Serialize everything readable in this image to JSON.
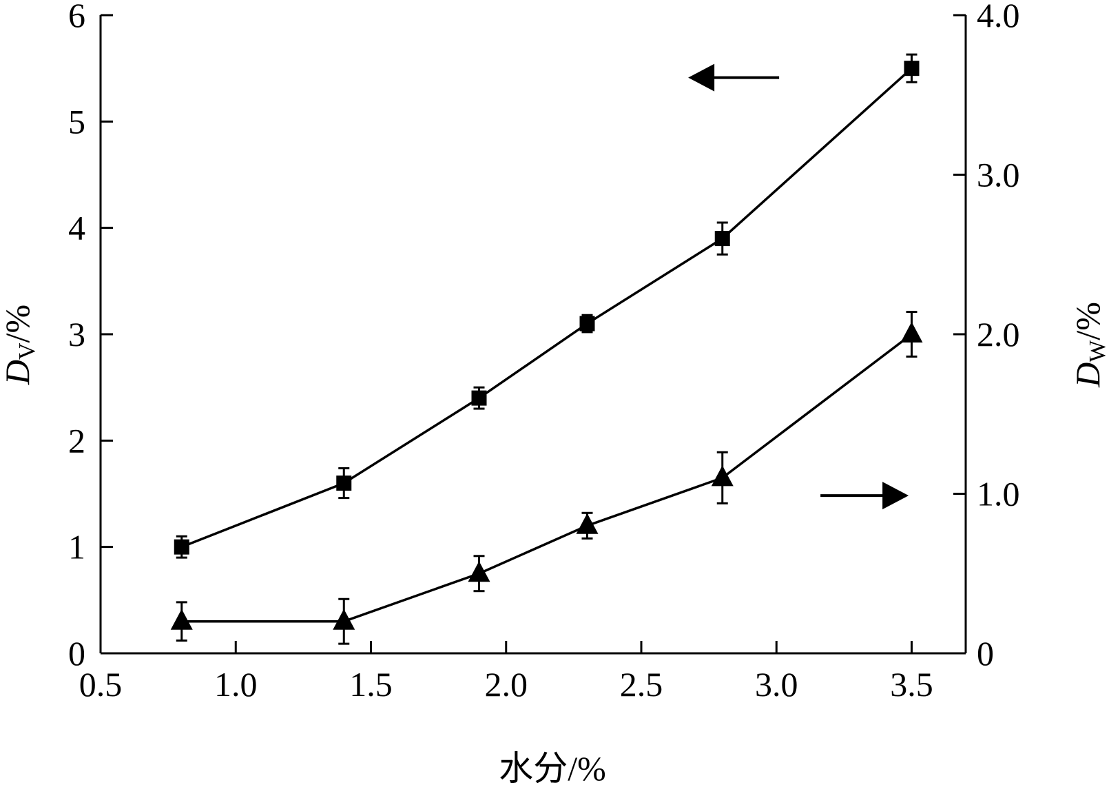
{
  "chart_data": {
    "type": "line",
    "xlabel": "水分/%",
    "ylabel_left": {
      "symbol": "D",
      "subscript": "V",
      "unit": "/%"
    },
    "ylabel_right": {
      "symbol": "D",
      "subscript": "W",
      "unit": "/%"
    },
    "xlim": [
      0.5,
      3.7
    ],
    "ylim_left": [
      0,
      6
    ],
    "ylim_right": [
      0,
      4
    ],
    "x_ticks": [
      0.5,
      1.0,
      1.5,
      2.0,
      2.5,
      3.0,
      3.5
    ],
    "x_tick_labels": [
      "0.5",
      "1.0",
      "1.5",
      "2.0",
      "2.5",
      "3.0",
      "3.5"
    ],
    "y_left_ticks": [
      0,
      1,
      2,
      3,
      4,
      5,
      6
    ],
    "y_left_tick_labels": [
      "0",
      "1",
      "2",
      "3",
      "4",
      "5",
      "6"
    ],
    "y_right_ticks": [
      0,
      1,
      2,
      3,
      4
    ],
    "y_right_tick_labels": [
      "0",
      "1.0",
      "2.0",
      "3.0",
      "4.0"
    ],
    "grid": false,
    "legend": "none",
    "series": [
      {
        "axis": "left",
        "marker": "square",
        "x": [
          0.8,
          1.4,
          1.9,
          2.3,
          2.8,
          3.5
        ],
        "y": [
          1.0,
          1.6,
          2.4,
          3.1,
          3.9,
          5.5
        ],
        "yerr": [
          0.1,
          0.14,
          0.1,
          0.08,
          0.15,
          0.13
        ]
      },
      {
        "axis": "right",
        "marker": "triangle",
        "x": [
          0.8,
          1.4,
          1.9,
          2.3,
          2.8,
          3.5
        ],
        "y": [
          0.2,
          0.2,
          0.5,
          0.8,
          1.1,
          2.0
        ],
        "yerr": [
          0.12,
          0.14,
          0.11,
          0.08,
          0.16,
          0.14
        ]
      }
    ],
    "annotations": [
      {
        "type": "arrow",
        "direction": "left",
        "points_to": "left-axis",
        "series": 0
      },
      {
        "type": "arrow",
        "direction": "right",
        "points_to": "right-axis",
        "series": 1
      }
    ],
    "colors": {
      "line": "#000000",
      "background": "#ffffff"
    }
  }
}
